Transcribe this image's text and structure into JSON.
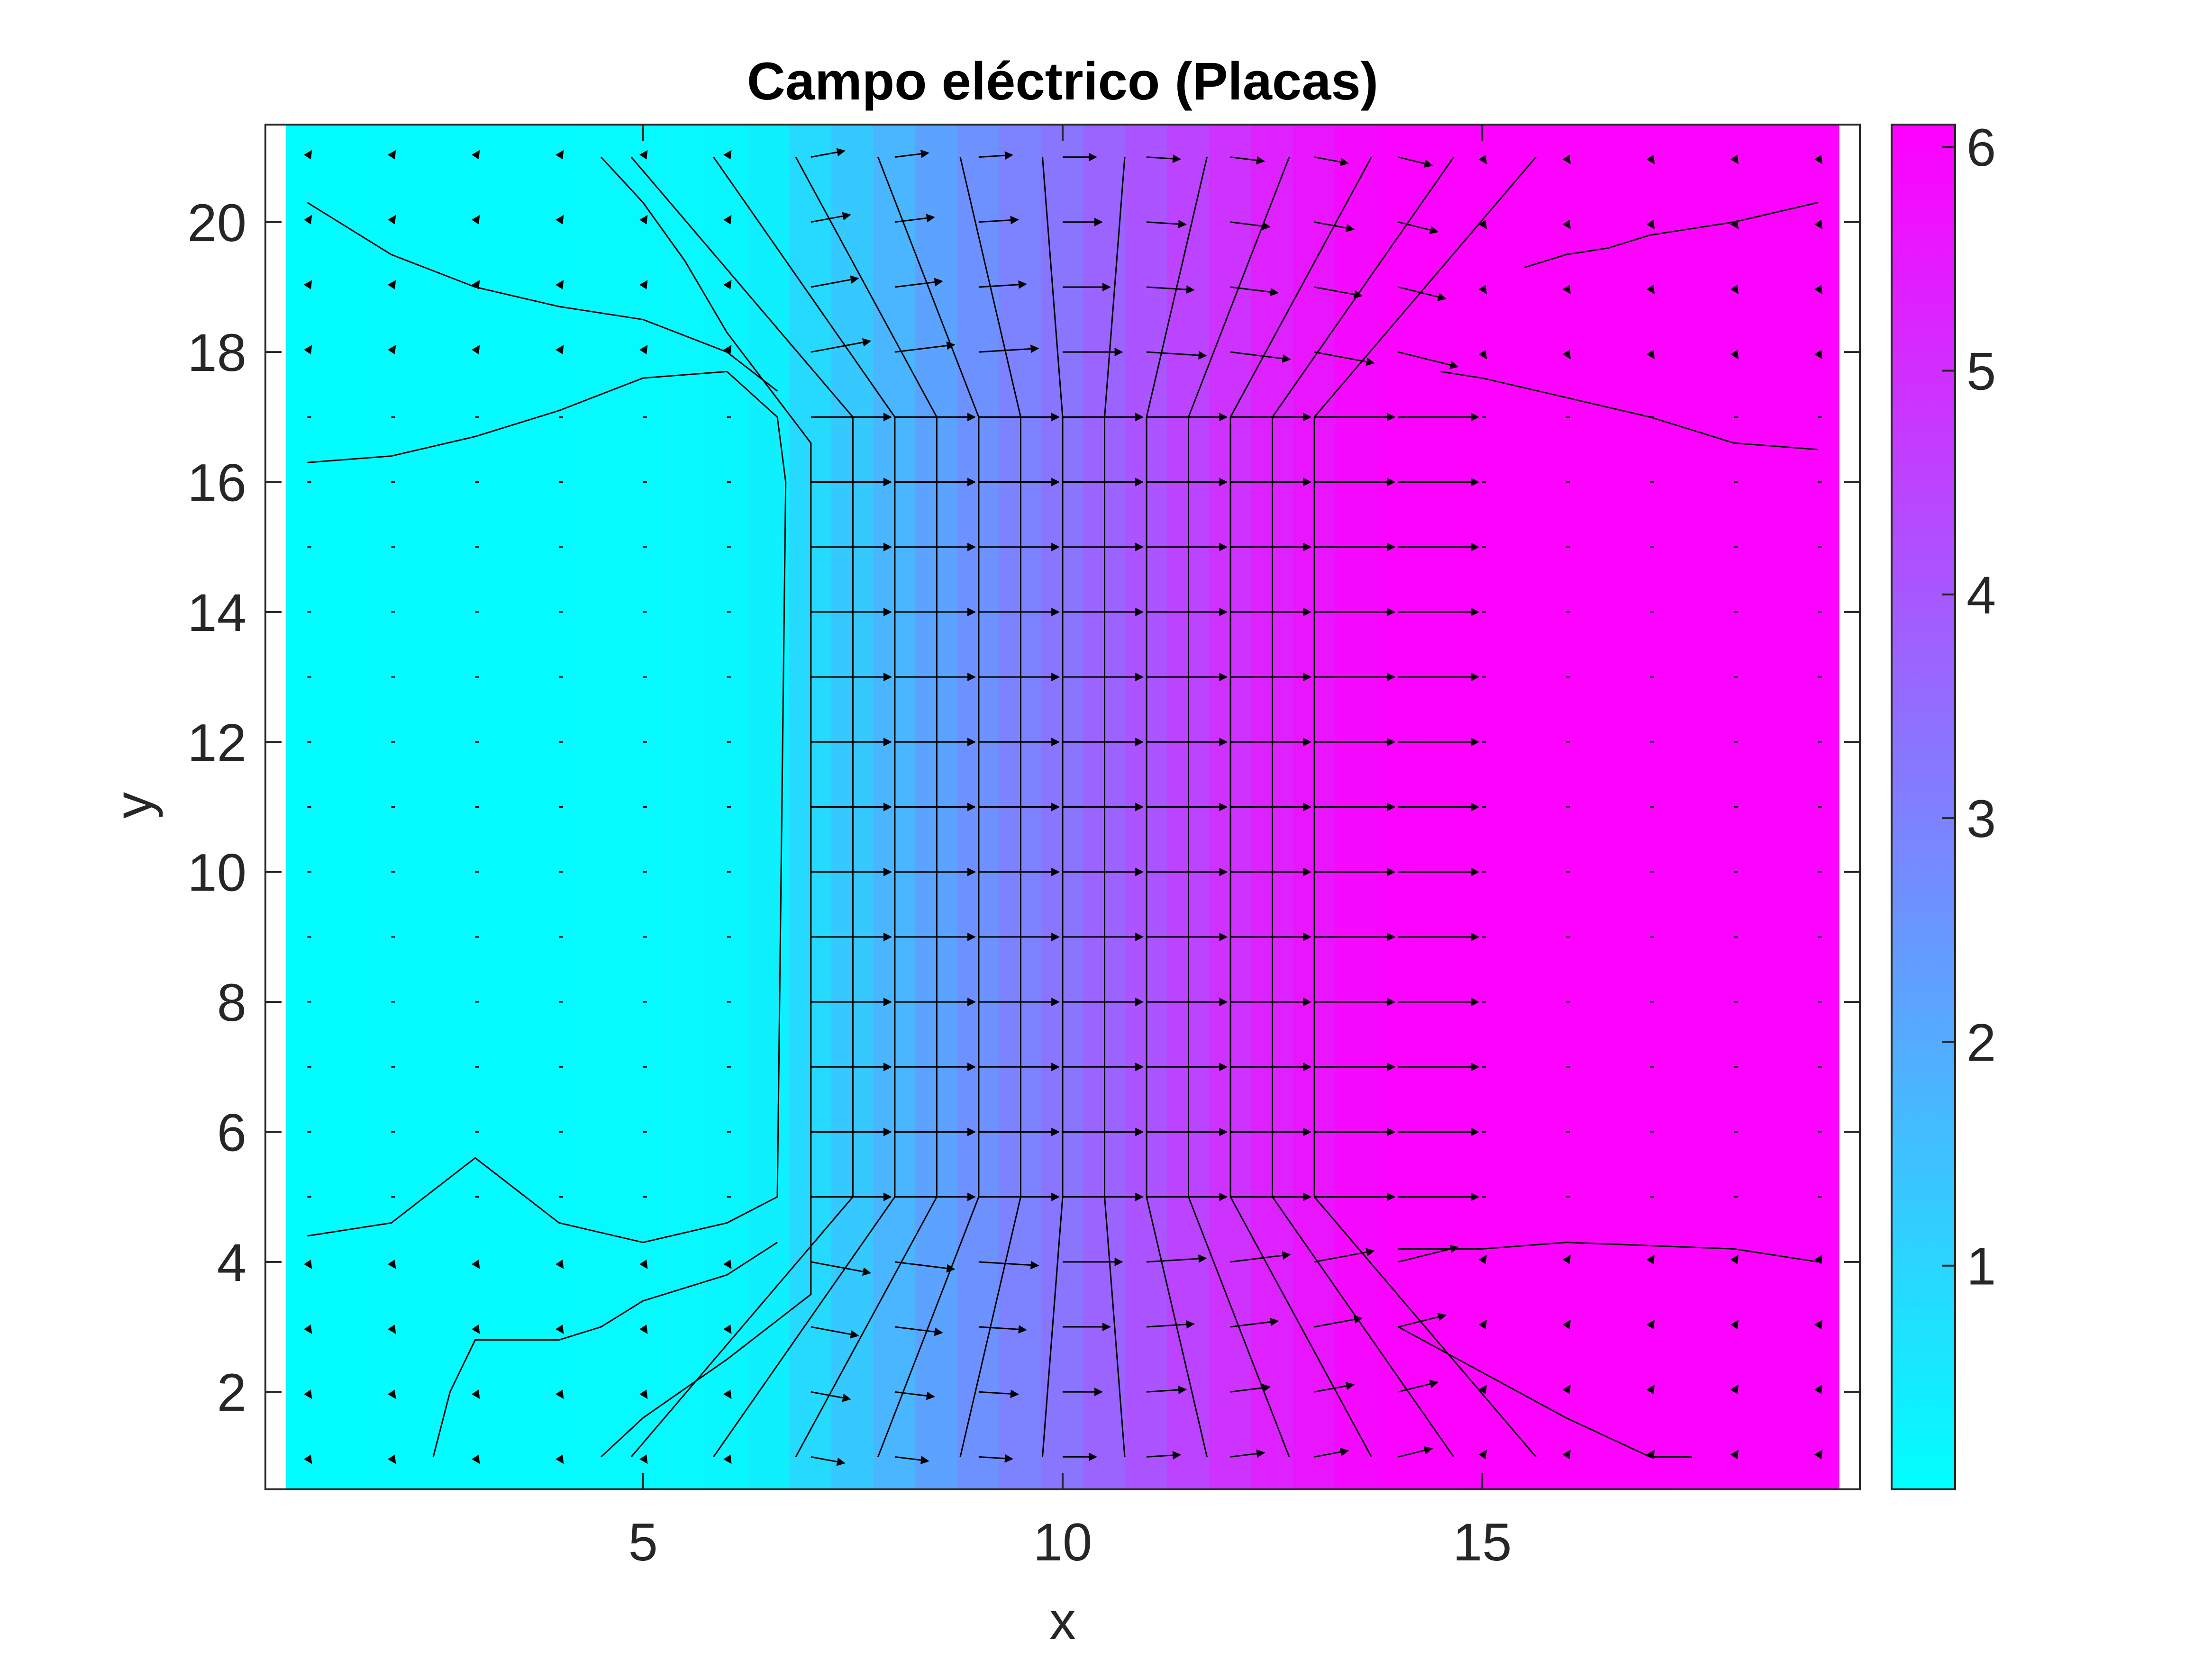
{
  "chart_data": {
    "type": "heatmap",
    "title": "Campo eléctrico (Placas)",
    "xlabel": "x",
    "ylabel": "y",
    "xlim": [
      0.5,
      19.5
    ],
    "ylim": [
      0.5,
      21.5
    ],
    "xticks": [
      5,
      10,
      15
    ],
    "yticks": [
      2,
      4,
      6,
      8,
      10,
      12,
      14,
      16,
      18,
      20
    ],
    "colorbar": {
      "limits": [
        0,
        6.1
      ],
      "ticks": [
        1,
        2,
        3,
        4,
        5,
        6
      ],
      "colormap": "cool"
    },
    "colors": {
      "cmap_low": "#00ffff",
      "cmap_high": "#ff00ff",
      "overlay": "#000000"
    },
    "grid": false,
    "potential_profile": {
      "x": [
        1,
        2,
        3,
        4,
        5,
        6,
        6.5,
        7,
        7.5,
        8,
        8.5,
        9,
        9.5,
        10,
        10.5,
        11,
        11.5,
        12,
        12.5,
        13,
        13.5,
        14,
        15,
        16,
        17,
        18,
        19
      ],
      "value": [
        0.05,
        0.06,
        0.08,
        0.1,
        0.12,
        0.2,
        0.35,
        0.9,
        1.3,
        1.75,
        2.2,
        2.6,
        3.0,
        3.3,
        3.7,
        4.1,
        4.5,
        4.9,
        5.3,
        5.6,
        5.85,
        6.0,
        6.05,
        6.05,
        6.05,
        6.0,
        6.0
      ]
    },
    "contour_lines": [
      {
        "x": [
          1,
          2,
          3,
          4,
          5,
          6,
          6.6
        ],
        "y": [
          20.3,
          19.5,
          19.0,
          18.7,
          18.5,
          18.0,
          17.4
        ]
      },
      {
        "x": [
          1,
          2,
          3,
          4,
          5,
          6,
          6.6,
          6.7,
          6.6,
          6,
          5,
          4,
          3,
          2,
          1
        ],
        "y": [
          16.3,
          16.4,
          16.7,
          17.1,
          17.6,
          17.7,
          17.0,
          16.0,
          5.0,
          4.6,
          4.3,
          4.6,
          5.6,
          4.6,
          4.4
        ]
      },
      {
        "x": [
          2.5,
          2.7,
          3,
          4,
          4.5,
          5,
          6,
          6.6
        ],
        "y": [
          1.0,
          2.0,
          2.8,
          2.8,
          3.0,
          3.4,
          3.8,
          4.3
        ]
      },
      {
        "x": [
          4.5,
          5,
          6,
          7,
          7,
          7,
          6,
          5.5,
          5,
          4.5
        ],
        "y": [
          1.0,
          1.6,
          2.5,
          3.5,
          4.8,
          16.6,
          18.3,
          19.4,
          20.3,
          21.0
        ]
      },
      {
        "x": [
          14.5,
          15,
          16,
          17,
          18,
          19
        ],
        "y": [
          17.7,
          17.6,
          17.3,
          17.0,
          16.6,
          16.5
        ]
      },
      {
        "x": [
          14,
          15,
          16,
          17,
          18,
          19
        ],
        "y": [
          4.2,
          4.2,
          4.3,
          4.25,
          4.2,
          4.0
        ]
      },
      {
        "x": [
          15.5,
          16,
          16.5,
          17,
          18,
          19
        ],
        "y": [
          19.3,
          19.5,
          19.6,
          19.8,
          20.0,
          20.3
        ]
      },
      {
        "x": [
          14,
          15,
          16,
          17,
          17.5
        ],
        "y": [
          3.0,
          2.3,
          1.6,
          1.0,
          1.0
        ]
      }
    ],
    "equipotential_x": [
      7.5,
      8,
      8.5,
      9,
      9.5,
      10,
      10.5,
      11,
      11.5,
      12,
      12.5,
      13
    ],
    "vector_field": {
      "x": [
        1,
        2,
        3,
        4,
        5,
        6,
        7,
        8,
        9,
        10,
        11,
        12,
        13,
        14,
        15,
        16,
        17,
        18,
        19
      ],
      "y": [
        1,
        2,
        3,
        4,
        5,
        6,
        7,
        8,
        9,
        10,
        11,
        12,
        13,
        14,
        15,
        16,
        17,
        18,
        19,
        20,
        21
      ],
      "plate_left_x": 6.6,
      "plate_right_x": 13.4,
      "plate_y": [
        5,
        17
      ]
    }
  }
}
